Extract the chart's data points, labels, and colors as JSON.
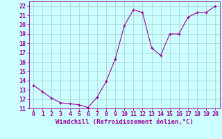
{
  "x": [
    0,
    1,
    2,
    3,
    4,
    5,
    6,
    7,
    8,
    9,
    10,
    11,
    12,
    13,
    14,
    15,
    16,
    17,
    18,
    19,
    20
  ],
  "y": [
    13.5,
    12.8,
    12.1,
    11.6,
    11.5,
    11.4,
    11.1,
    12.2,
    13.9,
    16.3,
    19.9,
    21.6,
    21.3,
    17.5,
    16.7,
    19.0,
    19.0,
    20.8,
    21.3,
    21.3,
    22.0
  ],
  "line_color": "#990099",
  "marker": "+",
  "marker_size": 3,
  "bg_color": "#ccffff",
  "grid_color": "#aacccc",
  "xlabel": "Windchill (Refroidissement éolien,°C)",
  "xlabel_color": "#990099",
  "xlabel_fontsize": 6.5,
  "tick_color": "#990099",
  "tick_fontsize": 6,
  "ylim": [
    11,
    22.5
  ],
  "xlim": [
    -0.5,
    20.5
  ],
  "yticks": [
    11,
    12,
    13,
    14,
    15,
    16,
    17,
    18,
    19,
    20,
    21,
    22
  ],
  "xticks": [
    0,
    1,
    2,
    3,
    4,
    5,
    6,
    7,
    8,
    9,
    10,
    11,
    12,
    13,
    14,
    15,
    16,
    17,
    18,
    19,
    20
  ]
}
